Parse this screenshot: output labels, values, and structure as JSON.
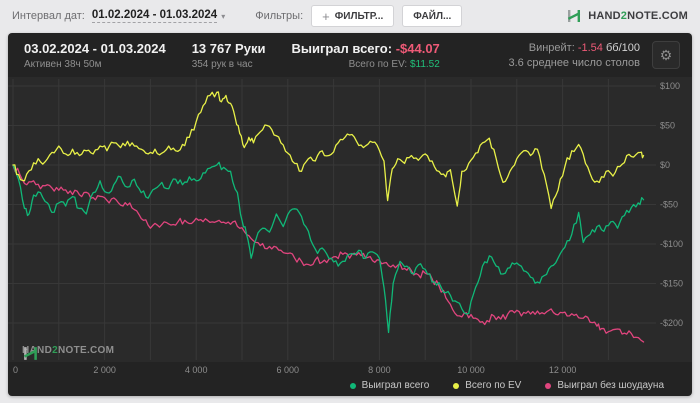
{
  "toolbar": {
    "interval_label": "Интервал дат:",
    "interval_value": "01.02.2024 - 01.03.2024",
    "filters_label": "Фильтры:",
    "filter_plus": "+",
    "filter_button": "ФИЛЬТР...",
    "file_button": "ФАЙЛ..."
  },
  "brand": {
    "part1": "HAND",
    "part2": "2",
    "part3": "NOTE.COM"
  },
  "stats": {
    "date_range": "03.02.2024 - 01.03.2024",
    "active_time": "Активен 38ч 50м",
    "hands": "13 767 Руки",
    "hands_per_hour": "354 рук в час",
    "won_label": "Выиграл всего:",
    "won_value": "-$44.07",
    "ev_label": "Всего по EV:",
    "ev_value": "$11.52",
    "winrate_label": "Винрейт:",
    "winrate_value": "-1.54",
    "winrate_units": "бб/100",
    "avg_tables": "3.6 среднее число столов",
    "gear_icon": "⚙"
  },
  "colors": {
    "panel": "#232323",
    "plot_bg": "#2a2a2a",
    "grid": "#383838",
    "tick_text": "#8d8d8d",
    "accent_green": "#2f9e57",
    "negative_red": "#ee5a77",
    "positive_green": "#21c07a"
  },
  "chart_data": {
    "type": "line",
    "xlabel": "hands played",
    "ylabel": "winnings ($)",
    "x_max": 13767,
    "ylim": [
      -240,
      115
    ],
    "grid": true,
    "legend_position": "bottom-right",
    "x_ticks": [
      0,
      2000,
      4000,
      6000,
      8000,
      10000,
      12000
    ],
    "x_tick_labels": [
      "0",
      "2 000",
      "4 000",
      "6 000",
      "8 000",
      "10 000",
      "12 000"
    ],
    "x_minor_step": 1000,
    "y_ticks": [
      100,
      50,
      0,
      -50,
      -100,
      -150,
      -200
    ],
    "y_tick_labels": [
      "$100",
      "$50",
      "$0",
      "-$50",
      "-$100",
      "-$150",
      "-$200"
    ],
    "series": [
      {
        "name": "Выиграл всего",
        "color": "#10b878",
        "final_value": -44.07,
        "points": [
          [
            0,
            0
          ],
          [
            120,
            -18
          ],
          [
            250,
            -55
          ],
          [
            350,
            -62
          ],
          [
            450,
            -38
          ],
          [
            600,
            -35
          ],
          [
            750,
            -48
          ],
          [
            850,
            -60
          ],
          [
            1000,
            -48
          ],
          [
            1150,
            -52
          ],
          [
            1300,
            -40
          ],
          [
            1450,
            -55
          ],
          [
            1600,
            -62
          ],
          [
            1750,
            -35
          ],
          [
            1900,
            -20
          ],
          [
            2050,
            -35
          ],
          [
            2200,
            -25
          ],
          [
            2350,
            -15
          ],
          [
            2500,
            -28
          ],
          [
            2650,
            -18
          ],
          [
            2800,
            -35
          ],
          [
            2950,
            -42
          ],
          [
            3100,
            -30
          ],
          [
            3250,
            -22
          ],
          [
            3400,
            -30
          ],
          [
            3550,
            -18
          ],
          [
            3700,
            -25
          ],
          [
            3850,
            -15
          ],
          [
            4000,
            -20
          ],
          [
            4150,
            -10
          ],
          [
            4300,
            -4
          ],
          [
            4450,
            0
          ],
          [
            4600,
            -3
          ],
          [
            4750,
            -8
          ],
          [
            4900,
            -35
          ],
          [
            5000,
            -70
          ],
          [
            5100,
            -88
          ],
          [
            5200,
            -118
          ],
          [
            5300,
            -95
          ],
          [
            5450,
            -80
          ],
          [
            5600,
            -85
          ],
          [
            5750,
            -62
          ],
          [
            5900,
            -78
          ],
          [
            6050,
            -58
          ],
          [
            6200,
            -56
          ],
          [
            6350,
            -75
          ],
          [
            6500,
            -95
          ],
          [
            6650,
            -112
          ],
          [
            6800,
            -108
          ],
          [
            6950,
            -118
          ],
          [
            7100,
            -128
          ],
          [
            7250,
            -122
          ],
          [
            7400,
            -112
          ],
          [
            7550,
            -108
          ],
          [
            7700,
            -118
          ],
          [
            7850,
            -110
          ],
          [
            8000,
            -118
          ],
          [
            8100,
            -155
          ],
          [
            8200,
            -212
          ],
          [
            8300,
            -150
          ],
          [
            8450,
            -122
          ],
          [
            8600,
            -128
          ],
          [
            8750,
            -138
          ],
          [
            8900,
            -125
          ],
          [
            9050,
            -138
          ],
          [
            9200,
            -148
          ],
          [
            9350,
            -155
          ],
          [
            9500,
            -160
          ],
          [
            9650,
            -172
          ],
          [
            9800,
            -182
          ],
          [
            9950,
            -188
          ],
          [
            10100,
            -155
          ],
          [
            10250,
            -128
          ],
          [
            10400,
            -115
          ],
          [
            10550,
            -128
          ],
          [
            10700,
            -138
          ],
          [
            10850,
            -130
          ],
          [
            11000,
            -124
          ],
          [
            11150,
            -134
          ],
          [
            11300,
            -142
          ],
          [
            11450,
            -148
          ],
          [
            11600,
            -140
          ],
          [
            11750,
            -128
          ],
          [
            11900,
            -118
          ],
          [
            12050,
            -104
          ],
          [
            12200,
            -88
          ],
          [
            12350,
            -60
          ],
          [
            12450,
            -98
          ],
          [
            12600,
            -88
          ],
          [
            12750,
            -78
          ],
          [
            12900,
            -84
          ],
          [
            13050,
            -72
          ],
          [
            13200,
            -80
          ],
          [
            13350,
            -64
          ],
          [
            13500,
            -54
          ],
          [
            13650,
            -48
          ],
          [
            13767,
            -44
          ]
        ]
      },
      {
        "name": "Всего по EV",
        "color": "#e8f048",
        "final_value": 11.52,
        "points": [
          [
            0,
            0
          ],
          [
            120,
            -12
          ],
          [
            250,
            -20
          ],
          [
            400,
            -6
          ],
          [
            550,
            8
          ],
          [
            700,
            4
          ],
          [
            850,
            16
          ],
          [
            1000,
            24
          ],
          [
            1150,
            14
          ],
          [
            1300,
            20
          ],
          [
            1450,
            12
          ],
          [
            1600,
            18
          ],
          [
            1750,
            14
          ],
          [
            1900,
            24
          ],
          [
            2050,
            18
          ],
          [
            2200,
            28
          ],
          [
            2350,
            22
          ],
          [
            2500,
            30
          ],
          [
            2650,
            24
          ],
          [
            2800,
            20
          ],
          [
            2950,
            14
          ],
          [
            3100,
            20
          ],
          [
            3250,
            15
          ],
          [
            3400,
            24
          ],
          [
            3550,
            18
          ],
          [
            3700,
            26
          ],
          [
            3850,
            35
          ],
          [
            4000,
            55
          ],
          [
            4150,
            75
          ],
          [
            4300,
            88
          ],
          [
            4450,
            92
          ],
          [
            4550,
            80
          ],
          [
            4650,
            88
          ],
          [
            4750,
            78
          ],
          [
            4850,
            60
          ],
          [
            4950,
            40
          ],
          [
            5050,
            22
          ],
          [
            5150,
            35
          ],
          [
            5250,
            28
          ],
          [
            5400,
            42
          ],
          [
            5550,
            50
          ],
          [
            5700,
            38
          ],
          [
            5850,
            28
          ],
          [
            6000,
            15
          ],
          [
            6150,
            2
          ],
          [
            6300,
            -8
          ],
          [
            6450,
            8
          ],
          [
            6600,
            5
          ],
          [
            6750,
            18
          ],
          [
            6900,
            12
          ],
          [
            7050,
            25
          ],
          [
            7200,
            32
          ],
          [
            7350,
            38
          ],
          [
            7500,
            30
          ],
          [
            7650,
            22
          ],
          [
            7800,
            30
          ],
          [
            7950,
            25
          ],
          [
            8100,
            5
          ],
          [
            8180,
            -45
          ],
          [
            8280,
            -5
          ],
          [
            8400,
            8
          ],
          [
            8550,
            2
          ],
          [
            8700,
            12
          ],
          [
            8850,
            6
          ],
          [
            9000,
            14
          ],
          [
            9150,
            5
          ],
          [
            9300,
            -8
          ],
          [
            9450,
            -15
          ],
          [
            9550,
            -6
          ],
          [
            9700,
            -52
          ],
          [
            9800,
            -8
          ],
          [
            9950,
            2
          ],
          [
            10100,
            15
          ],
          [
            10250,
            28
          ],
          [
            10400,
            34
          ],
          [
            10550,
            8
          ],
          [
            10700,
            -22
          ],
          [
            10850,
            -8
          ],
          [
            11000,
            8
          ],
          [
            11150,
            18
          ],
          [
            11300,
            12
          ],
          [
            11450,
            20
          ],
          [
            11600,
            -12
          ],
          [
            11750,
            -55
          ],
          [
            11900,
            -32
          ],
          [
            12050,
            -2
          ],
          [
            12200,
            18
          ],
          [
            12350,
            26
          ],
          [
            12500,
            2
          ],
          [
            12650,
            -18
          ],
          [
            12800,
            -22
          ],
          [
            12950,
            -8
          ],
          [
            13100,
            -14
          ],
          [
            13250,
            -2
          ],
          [
            13400,
            12
          ],
          [
            13550,
            10
          ],
          [
            13700,
            16
          ],
          [
            13767,
            12
          ]
        ]
      },
      {
        "name": "Выиграл без шоудауна",
        "color": "#e0457e",
        "points": [
          [
            0,
            0
          ],
          [
            150,
            -12
          ],
          [
            300,
            -25
          ],
          [
            450,
            -20
          ],
          [
            600,
            -30
          ],
          [
            750,
            -25
          ],
          [
            900,
            -33
          ],
          [
            1050,
            -28
          ],
          [
            1200,
            -36
          ],
          [
            1350,
            -32
          ],
          [
            1500,
            -40
          ],
          [
            1650,
            -36
          ],
          [
            1800,
            -44
          ],
          [
            1950,
            -40
          ],
          [
            2100,
            -48
          ],
          [
            2250,
            -44
          ],
          [
            2400,
            -52
          ],
          [
            2550,
            -48
          ],
          [
            2700,
            -58
          ],
          [
            2850,
            -70
          ],
          [
            3000,
            -80
          ],
          [
            3150,
            -76
          ],
          [
            3300,
            -72
          ],
          [
            3450,
            -76
          ],
          [
            3600,
            -72
          ],
          [
            3750,
            -70
          ],
          [
            3900,
            -74
          ],
          [
            4050,
            -70
          ],
          [
            4200,
            -68
          ],
          [
            4350,
            -72
          ],
          [
            4500,
            -70
          ],
          [
            4650,
            -74
          ],
          [
            4800,
            -72
          ],
          [
            4950,
            -80
          ],
          [
            5100,
            -88
          ],
          [
            5250,
            -96
          ],
          [
            5400,
            -102
          ],
          [
            5550,
            -106
          ],
          [
            5700,
            -103
          ],
          [
            5850,
            -108
          ],
          [
            6000,
            -112
          ],
          [
            6150,
            -118
          ],
          [
            6300,
            -122
          ],
          [
            6450,
            -126
          ],
          [
            6600,
            -120
          ],
          [
            6750,
            -123
          ],
          [
            6900,
            -119
          ],
          [
            7050,
            -116
          ],
          [
            7200,
            -113
          ],
          [
            7350,
            -118
          ],
          [
            7500,
            -114
          ],
          [
            7650,
            -112
          ],
          [
            7800,
            -116
          ],
          [
            7950,
            -120
          ],
          [
            8100,
            -124
          ],
          [
            8250,
            -129
          ],
          [
            8400,
            -127
          ],
          [
            8550,
            -131
          ],
          [
            8700,
            -134
          ],
          [
            8850,
            -139
          ],
          [
            9000,
            -137
          ],
          [
            9150,
            -144
          ],
          [
            9300,
            -153
          ],
          [
            9450,
            -168
          ],
          [
            9600,
            -183
          ],
          [
            9750,
            -191
          ],
          [
            9900,
            -187
          ],
          [
            10050,
            -194
          ],
          [
            10200,
            -199
          ],
          [
            10350,
            -197
          ],
          [
            10500,
            -191
          ],
          [
            10650,
            -195
          ],
          [
            10800,
            -189
          ],
          [
            10950,
            -187
          ],
          [
            11100,
            -191
          ],
          [
            11250,
            -185
          ],
          [
            11400,
            -189
          ],
          [
            11550,
            -187
          ],
          [
            11700,
            -184
          ],
          [
            11850,
            -189
          ],
          [
            12000,
            -187
          ],
          [
            12150,
            -191
          ],
          [
            12300,
            -189
          ],
          [
            12450,
            -194
          ],
          [
            12600,
            -199
          ],
          [
            12750,
            -204
          ],
          [
            12850,
            -207
          ],
          [
            13000,
            -211
          ],
          [
            13150,
            -208
          ],
          [
            13300,
            -214
          ],
          [
            13450,
            -210
          ],
          [
            13600,
            -218
          ],
          [
            13767,
            -224
          ]
        ]
      }
    ]
  }
}
